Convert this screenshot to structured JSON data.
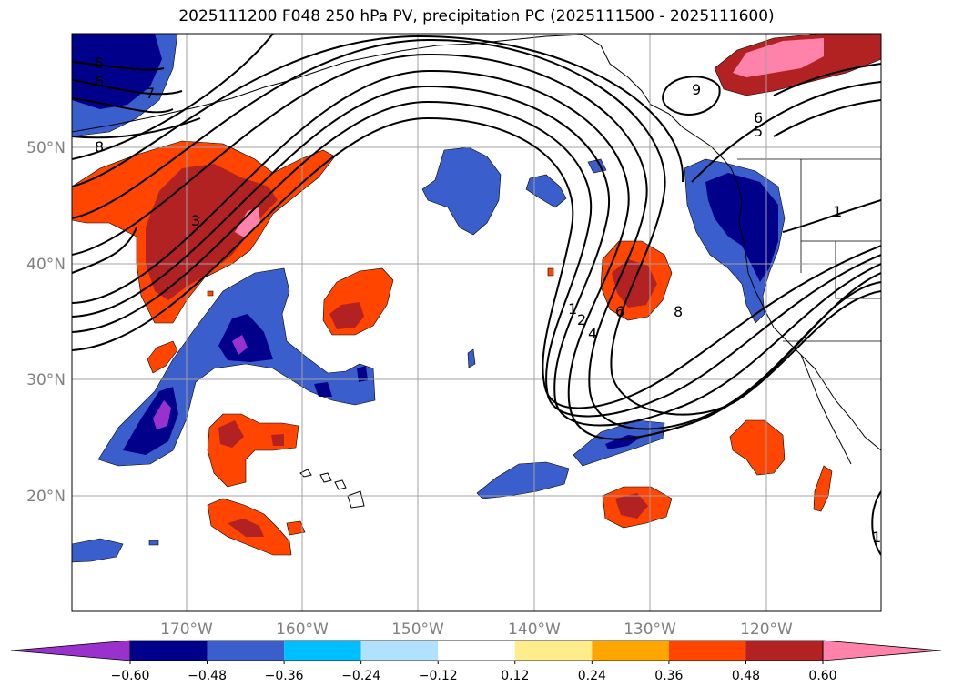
{
  "title": "2025111200 F048 250 hPa PV, precipitation PC (2025111500 - 2025111600)",
  "latitude_labels": [
    "50°N",
    "40°N",
    "30°N",
    "20°N"
  ],
  "longitude_labels": [
    "170°W",
    "160°W",
    "150°W",
    "140°W",
    "130°W",
    "120°W"
  ],
  "contour_labels": [
    "5",
    "6",
    "7",
    "8",
    "3",
    "9",
    "5",
    "6",
    "1",
    "1",
    "2",
    "4",
    "6",
    "8",
    "1"
  ],
  "colorbar": {
    "colors": [
      "#9932cc",
      "#00008b",
      "#3a5fcd",
      "#00bfff",
      "#b0e2ff",
      "#ffffff",
      "#ffec8b",
      "#ffa500",
      "#ff4500",
      "#b22222",
      "#ff82ab"
    ],
    "tick_labels": [
      "−0.60",
      "−0.48",
      "−0.36",
      "−0.24",
      "−0.12",
      "0.12",
      "0.24",
      "0.36",
      "0.48",
      "0.60"
    ]
  }
}
